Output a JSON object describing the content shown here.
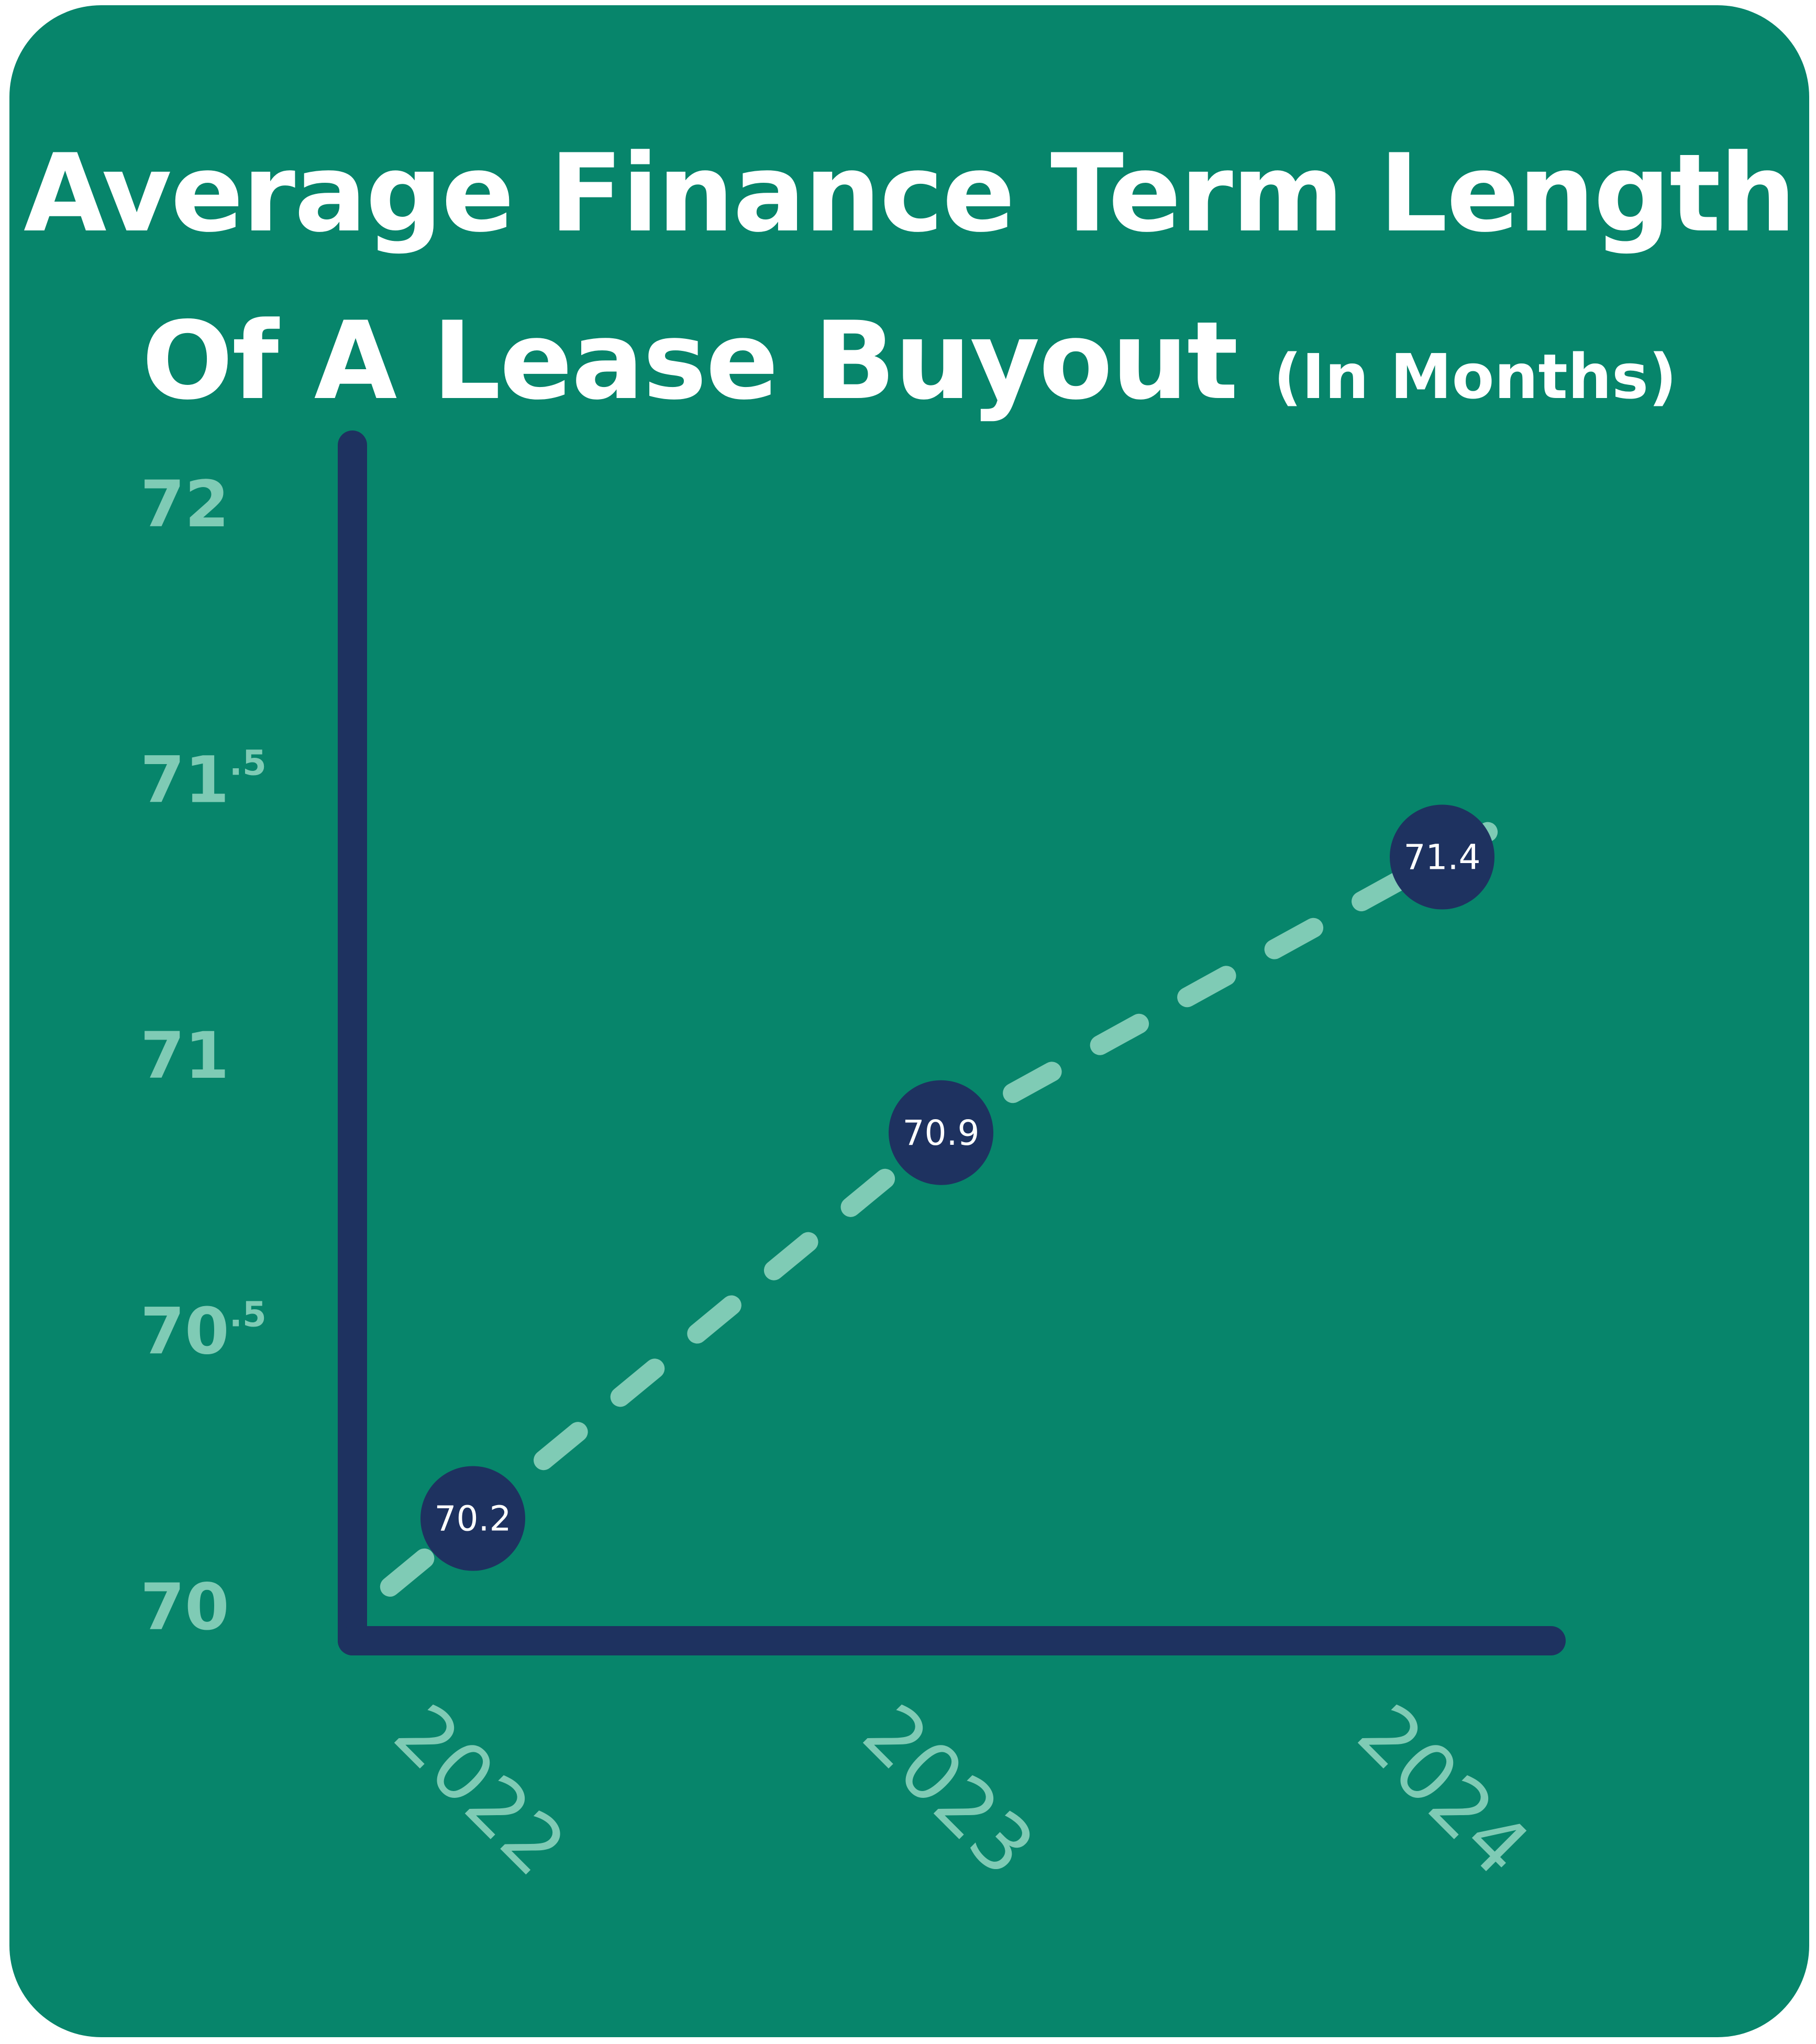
{
  "title_line1": "Average Finance Term Length",
  "title_line2": "Of A Lease Buyout",
  "title_unit": "(In Months)",
  "colors": {
    "background": "#07856b",
    "axis": "#1e3260",
    "line": "#7fcbb5",
    "tick_text": "#7fcbb5",
    "marker": "#1e3260",
    "marker_text": "#ffffff"
  },
  "chart_data": {
    "type": "line",
    "title": "Average Finance Term Length Of A Lease Buyout (In Months)",
    "xlabel": "",
    "ylabel": "",
    "categories": [
      "2022",
      "2023",
      "2024"
    ],
    "series": [
      {
        "values": [
          70.2,
          70.9,
          71.4
        ],
        "labels": [
          "70.2",
          "70.9",
          "71.4"
        ],
        "style": "dashed"
      }
    ],
    "ylim": [
      70,
      72
    ],
    "y_ticks": [
      {
        "value": 70,
        "main": "70",
        "sup": ""
      },
      {
        "value": 70.5,
        "main": "70",
        "sup": ".5"
      },
      {
        "value": 71,
        "main": "71",
        "sup": ""
      },
      {
        "value": 71.5,
        "main": "71",
        "sup": ".5"
      },
      {
        "value": 72,
        "main": "72",
        "sup": ""
      }
    ],
    "grid": false,
    "legend": "none"
  }
}
